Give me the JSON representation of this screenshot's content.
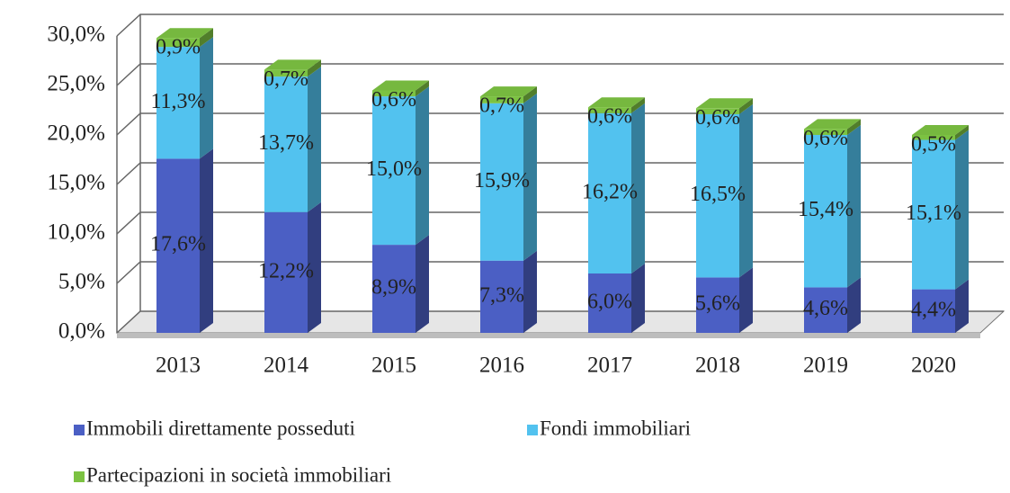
{
  "chart_data": {
    "type": "bar3d_stacked",
    "categories": [
      "2013",
      "2014",
      "2015",
      "2016",
      "2017",
      "2018",
      "2019",
      "2020"
    ],
    "series": [
      {
        "name": "Immobili direttamente posseduti",
        "color": "#4b5fc4",
        "values": [
          17.6,
          12.2,
          8.9,
          7.3,
          6.0,
          5.6,
          4.6,
          4.4
        ],
        "value_labels": [
          "17,6%",
          "12,2%",
          "8,9%",
          "7,3%",
          "6,0%",
          "5,6%",
          "4,6%",
          "4,4%"
        ]
      },
      {
        "name": "Fondi immobiliari",
        "color": "#52c2ef",
        "values": [
          11.3,
          13.7,
          15.0,
          15.9,
          16.2,
          16.5,
          15.4,
          15.1
        ],
        "value_labels": [
          "11,3%",
          "13,7%",
          "15,0%",
          "15,9%",
          "16,2%",
          "16,5%",
          "15,4%",
          "15,1%"
        ]
      },
      {
        "name": "Partecipazioni in società immobiliari",
        "color": "#7cc242",
        "values": [
          0.9,
          0.7,
          0.6,
          0.7,
          0.6,
          0.6,
          0.6,
          0.5
        ],
        "value_labels": [
          "0,9%",
          "0,7%",
          "0,6%",
          "0,7%",
          "0,6%",
          "0,6%",
          "0,6%",
          "0,5%"
        ]
      }
    ],
    "ylim": [
      0,
      30
    ],
    "yticks": [
      {
        "value": 0,
        "label": "0,0%"
      },
      {
        "value": 5,
        "label": "5,0%"
      },
      {
        "value": 10,
        "label": "10,0%"
      },
      {
        "value": 15,
        "label": "15,0%"
      },
      {
        "value": 20,
        "label": "20,0%"
      },
      {
        "value": 25,
        "label": "25,0%"
      },
      {
        "value": 30,
        "label": "30,0%"
      }
    ],
    "grid": true,
    "legend": "bottom"
  }
}
